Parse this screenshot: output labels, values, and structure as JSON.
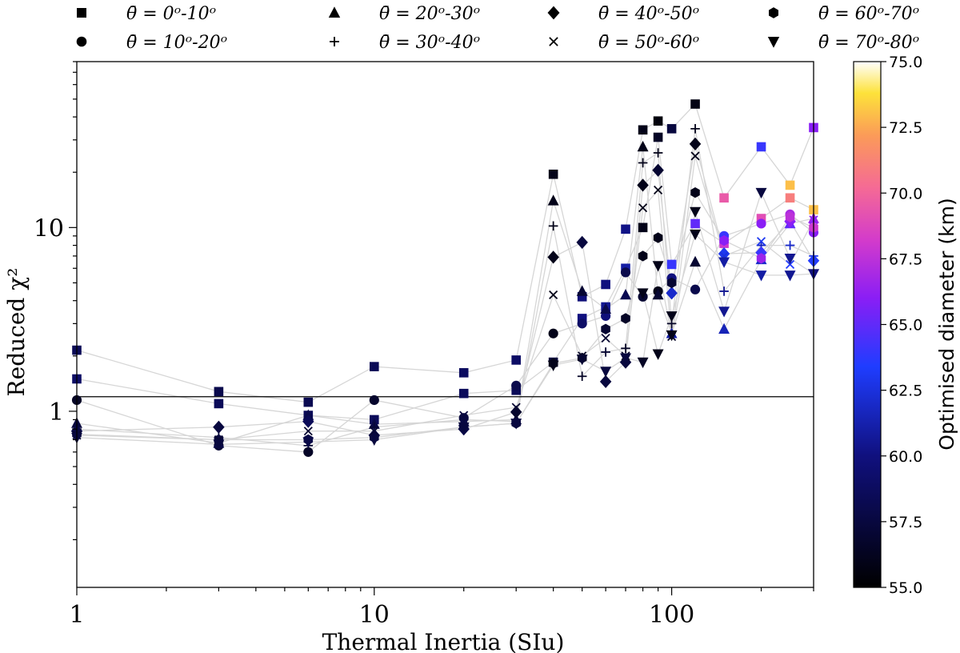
{
  "chart_data": {
    "type": "scatter",
    "xlabel": "Thermal Inertia (SIu)",
    "ylabel": "Reduced χ²",
    "xscale": "log",
    "yscale": "log",
    "xlim": [
      1,
      300
    ],
    "ylim": [
      0.11,
      80
    ],
    "x_ticks": [
      {
        "value": 1,
        "label": "1"
      },
      {
        "value": 10,
        "label": "10"
      },
      {
        "value": 100,
        "label": "100"
      }
    ],
    "y_ticks": [
      {
        "value": 1,
        "label": "1"
      },
      {
        "value": 10,
        "label": "10"
      }
    ],
    "reference_line": {
      "y": 1.2
    },
    "legend": {
      "placement": "top",
      "entries": [
        {
          "marker": "square",
          "text": "θ̄ = 0ᵒ-10ᵒ"
        },
        {
          "marker": "triangle-up",
          "text": "θ̄ = 20ᵒ-30ᵒ"
        },
        {
          "marker": "diamond",
          "text": "θ̄ = 40ᵒ-50ᵒ"
        },
        {
          "marker": "hexagon",
          "text": "θ̄ = 60ᵒ-70ᵒ"
        },
        {
          "marker": "circle",
          "text": "θ̄ = 10ᵒ-20ᵒ"
        },
        {
          "marker": "plus",
          "text": "θ̄ = 30ᵒ-40ᵒ"
        },
        {
          "marker": "x",
          "text": "θ̄ = 50ᵒ-60ᵒ"
        },
        {
          "marker": "triangle-down",
          "text": "θ̄ = 70ᵒ-80ᵒ"
        }
      ]
    },
    "colorbar": {
      "label": "Optimised diameter (km)",
      "min": 55.0,
      "max": 75.0,
      "ticks": [
        "55.0",
        "57.5",
        "60.0",
        "62.5",
        "65.0",
        "67.5",
        "70.0",
        "72.5",
        "75.0"
      ],
      "colormap": "gnuplot2"
    },
    "x_values": [
      1,
      3,
      6,
      10,
      20,
      30,
      40,
      50,
      60,
      70,
      80,
      90,
      100,
      120,
      150,
      200,
      250,
      300
    ],
    "series": [
      {
        "name": "square-a",
        "marker": "square",
        "y": [
          2.15,
          1.28,
          1.12,
          1.75,
          1.62,
          1.9,
          19.5,
          4.2,
          4.9,
          9.8,
          34,
          38,
          34.5,
          47,
          14.5,
          27.5,
          17,
          35
        ],
        "d": [
          58.5,
          58,
          58.2,
          58.4,
          58.8,
          59,
          56,
          59.8,
          60,
          60.2,
          56,
          55.5,
          57.5,
          55.8,
          69.5,
          64,
          73,
          66
        ]
      },
      {
        "name": "square-b",
        "marker": "square",
        "y": [
          1.5,
          1.1,
          0.95,
          0.9,
          1.25,
          1.3,
          1.85,
          3.2,
          3.7,
          6.0,
          10,
          31,
          6.3,
          10.5,
          8.2,
          11.2,
          14.5,
          12.5
        ],
        "d": [
          59,
          58.5,
          58.5,
          58.6,
          58.6,
          58.5,
          57.5,
          60,
          60.5,
          61,
          56,
          56.5,
          64,
          65,
          68,
          69,
          71,
          73
        ]
      },
      {
        "name": "circle",
        "marker": "circle",
        "y": [
          1.15,
          0.65,
          0.6,
          1.15,
          0.92,
          1.38,
          2.65,
          3.0,
          3.3,
          5.7,
          4.2,
          4.5,
          5.3,
          4.6,
          9.0,
          10.5,
          11.8,
          9.4
        ],
        "d": [
          56.5,
          57,
          56.5,
          56.8,
          57.5,
          58,
          56,
          59,
          59.8,
          58,
          57,
          56,
          60,
          58,
          64,
          66,
          67,
          66
        ]
      },
      {
        "name": "triangle-up",
        "marker": "triangle-up",
        "y": [
          0.86,
          0.67,
          0.95,
          0.85,
          0.88,
          0.9,
          14,
          4.5,
          3.6,
          4.3,
          27.5,
          4.3,
          2.65,
          6.5,
          2.8,
          6.7,
          10.5,
          11.2
        ],
        "d": [
          57.5,
          57.8,
          58,
          57.8,
          57.8,
          57.5,
          56,
          57,
          58,
          58.2,
          56,
          57,
          61,
          57,
          61.5,
          62,
          65,
          66.5
        ]
      },
      {
        "name": "plus",
        "marker": "plus",
        "y": [
          0.8,
          0.72,
          0.65,
          0.82,
          0.9,
          0.88,
          10.2,
          1.55,
          2.1,
          2.2,
          22.5,
          25.5,
          3.0,
          34.5,
          4.5,
          8.0,
          8.0,
          7.0
        ],
        "d": [
          57,
          57,
          57,
          57.2,
          57.5,
          57.5,
          56,
          56.5,
          57,
          56.5,
          56,
          56,
          56.5,
          56,
          60.5,
          61.5,
          62,
          63
        ]
      },
      {
        "name": "diamond",
        "marker": "diamond",
        "y": [
          0.78,
          0.82,
          0.88,
          0.74,
          0.8,
          0.99,
          6.9,
          8.3,
          1.45,
          1.85,
          17,
          20.5,
          4.4,
          28.5,
          7.2,
          7.3,
          10.8,
          6.6
        ],
        "d": [
          57.8,
          57.5,
          58.5,
          58,
          57.8,
          56.8,
          56,
          57.5,
          57.5,
          57.5,
          56,
          57,
          62,
          56,
          63,
          64,
          66,
          63.5
        ]
      },
      {
        "name": "hexagon",
        "marker": "hexagon",
        "y": [
          0.75,
          0.7,
          0.7,
          0.72,
          0.82,
          0.86,
          1.82,
          1.95,
          2.8,
          3.2,
          7.0,
          8.8,
          5.0,
          15.5,
          8.5,
          6.8,
          11.4,
          10.0
        ],
        "d": [
          57.5,
          57.5,
          57.8,
          57.5,
          57.6,
          57.5,
          56,
          56.5,
          57,
          56.5,
          56,
          56,
          57,
          56,
          66,
          66.5,
          67.5,
          68
        ]
      },
      {
        "name": "x",
        "marker": "x",
        "y": [
          0.74,
          0.7,
          0.78,
          0.78,
          0.95,
          1.05,
          4.3,
          2.0,
          2.5,
          2.0,
          12.8,
          16,
          2.55,
          24.5,
          7.0,
          8.4,
          6.3,
          11.0
        ],
        "d": [
          57,
          57,
          57,
          57,
          57.5,
          57,
          56,
          56.5,
          57,
          56.5,
          56,
          56,
          56.5,
          56,
          62.5,
          63,
          63.5,
          66
        ]
      },
      {
        "name": "triangle-down",
        "marker": "triangle-down",
        "y": [
          0.72,
          0.66,
          0.68,
          0.7,
          0.82,
          0.86,
          1.78,
          1.92,
          1.65,
          1.95,
          1.85,
          6.2,
          2.6,
          12.2,
          3.5,
          15.5,
          6.8,
          5.6
        ],
        "d": [
          57.5,
          57.5,
          57.8,
          57.5,
          57.5,
          57.5,
          56,
          57,
          57.5,
          57.5,
          56.5,
          56,
          56,
          56,
          60.5,
          57.5,
          60.5,
          60.3
        ]
      },
      {
        "name": "triangle-down-b",
        "marker": "triangle-down",
        "y": [
          null,
          null,
          null,
          null,
          null,
          null,
          null,
          null,
          null,
          null,
          4.4,
          2.05,
          3.3,
          9.2,
          6.5,
          5.5,
          5.5,
          5.6
        ],
        "d": [
          null,
          null,
          null,
          null,
          null,
          null,
          null,
          null,
          null,
          null,
          56,
          56,
          56,
          56,
          61,
          61,
          60.5,
          60
        ]
      }
    ]
  }
}
